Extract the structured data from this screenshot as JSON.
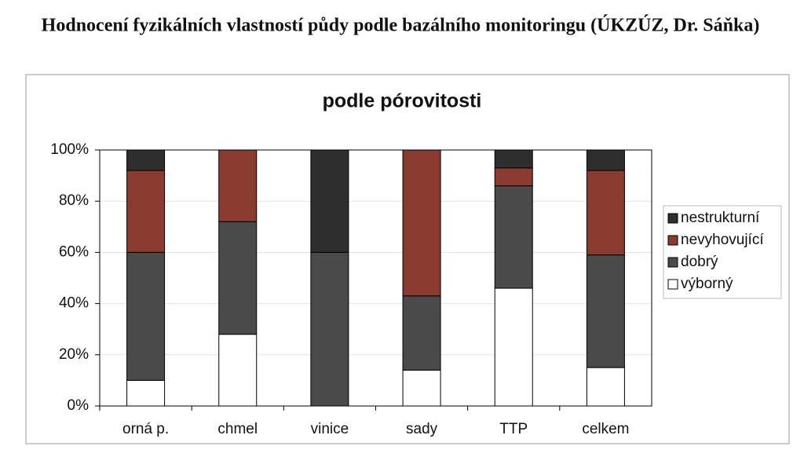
{
  "header": {
    "title": "Hodnocení fyzikálních vlastností půdy podle bazálního monitoringu (ÚKZÚZ, Dr. Sáňka)"
  },
  "chart_data": {
    "type": "stacked-bar",
    "title": "podle pórovitosti",
    "categories": [
      "orná p.",
      "chmel",
      "vinice",
      "sady",
      "TTP",
      "celkem"
    ],
    "series": [
      {
        "name": "výborný",
        "color": "#ffffff",
        "values": [
          10,
          28,
          0,
          14,
          46,
          15
        ]
      },
      {
        "name": "dobrý",
        "color": "#4a4a4a",
        "values": [
          50,
          44,
          60,
          29,
          40,
          44
        ]
      },
      {
        "name": "nevyhovující",
        "color": "#8a3b30",
        "values": [
          32,
          28,
          0,
          57,
          7,
          33
        ]
      },
      {
        "name": "nestrukturní",
        "color": "#2e2e2e",
        "values": [
          8,
          0,
          40,
          0,
          7,
          8
        ]
      }
    ],
    "ylim": [
      0,
      100
    ],
    "yticks": [
      {
        "value": 0,
        "label": "0%"
      },
      {
        "value": 20,
        "label": "20%"
      },
      {
        "value": 40,
        "label": "40%"
      },
      {
        "value": 60,
        "label": "60%"
      },
      {
        "value": 80,
        "label": "80%"
      },
      {
        "value": 100,
        "label": "100%"
      }
    ],
    "grid": true,
    "legend": "right"
  }
}
